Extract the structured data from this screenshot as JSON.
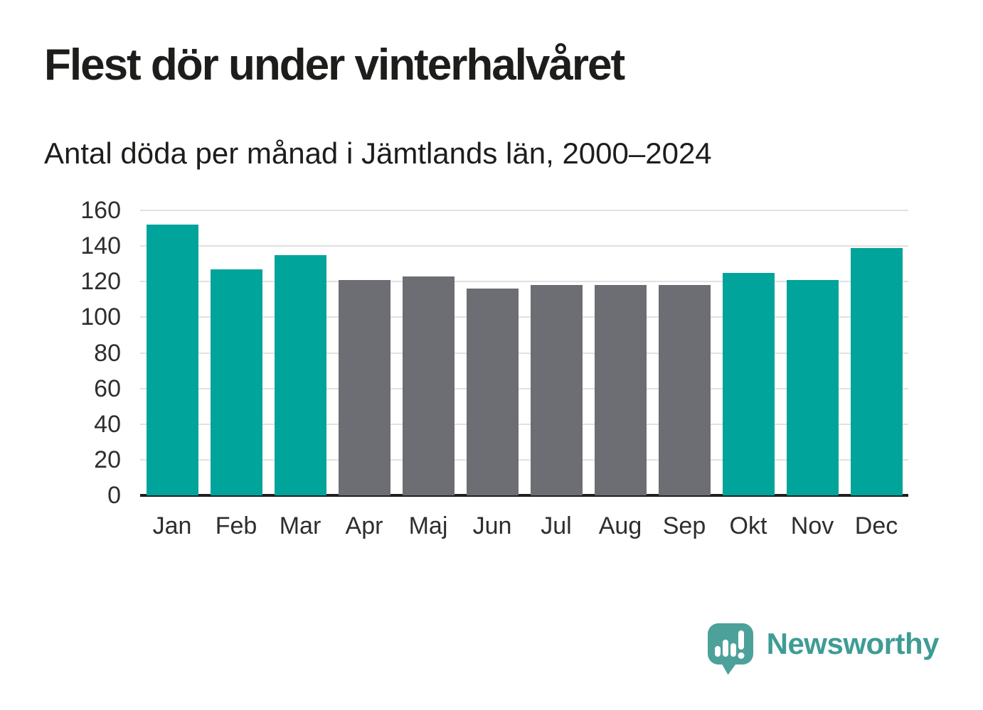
{
  "header": {
    "title": "Flest dör under vinterhalvåret",
    "subtitle": "Antal döda per månad i Jämtlands län, 2000–2024"
  },
  "chart_data": {
    "type": "bar",
    "title": "Flest dör under vinterhalvåret",
    "subtitle": "Antal döda per månad i Jämtlands län, 2000–2024",
    "categories": [
      "Jan",
      "Feb",
      "Mar",
      "Apr",
      "Maj",
      "Jun",
      "Jul",
      "Aug",
      "Sep",
      "Okt",
      "Nov",
      "Dec"
    ],
    "values": [
      152,
      127,
      135,
      121,
      123,
      116,
      118,
      118,
      118,
      125,
      121,
      139
    ],
    "bar_groups": [
      "winter",
      "winter",
      "winter",
      "summer",
      "summer",
      "summer",
      "summer",
      "summer",
      "summer",
      "winter",
      "winter",
      "winter"
    ],
    "colors": {
      "winter": "#00a49a",
      "summer": "#6d6d74",
      "gridline": "#e1e1e1",
      "axis_line": "#1f1f1f",
      "tick_text": "#2e2e2e"
    },
    "xlabel": "",
    "ylabel": "",
    "ylim": [
      0,
      160
    ],
    "yticks": [
      0,
      20,
      40,
      60,
      80,
      100,
      120,
      140,
      160
    ],
    "grid": true,
    "legend": "none"
  },
  "footer": {
    "brand": "Newsworthy",
    "logo_icon": "newsworthy-speech-bubble-chart-icon",
    "brand_color": "#3f9c95",
    "icon_color": "#4da19b"
  }
}
